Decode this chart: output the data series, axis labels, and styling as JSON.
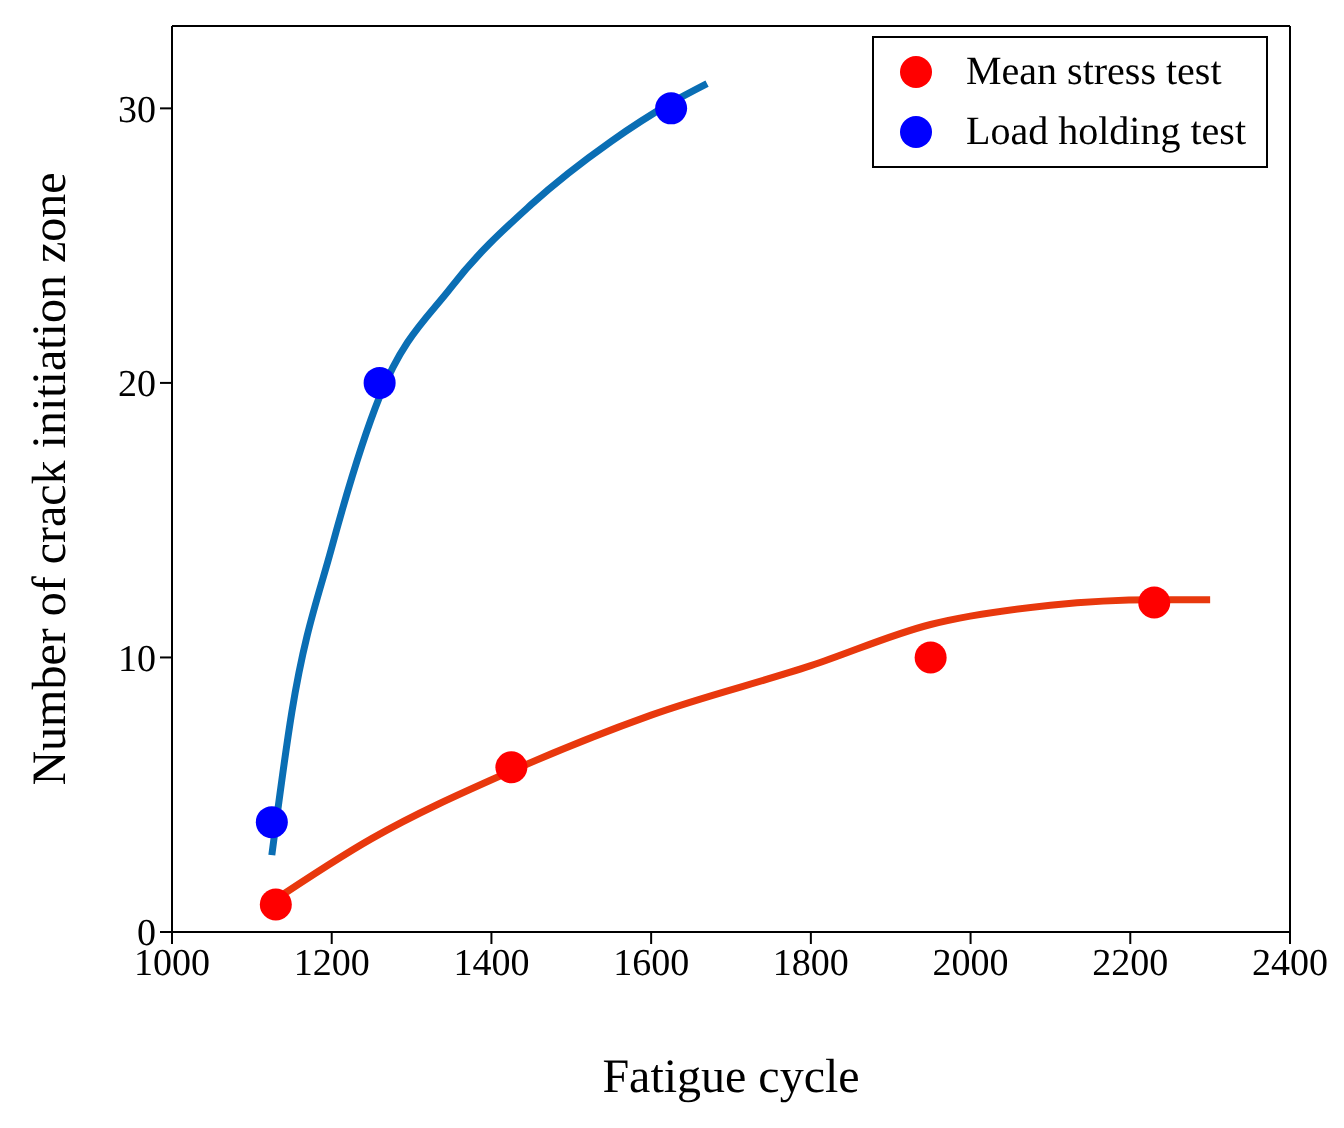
{
  "chart_data": {
    "type": "scatter",
    "xlabel": "Fatigue cycle",
    "ylabel": "Number of crack initiation zone",
    "xlim": [
      1000,
      2400
    ],
    "xticks": [
      1000,
      1200,
      1400,
      1600,
      1800,
      2000,
      2200,
      2400
    ],
    "ylim": [
      0,
      33
    ],
    "yticks": [
      0,
      10,
      20,
      30
    ],
    "grid": false,
    "legend": "top right",
    "marker": "circle",
    "series": [
      {
        "name": "Mean stress test",
        "color": "#ff0000",
        "x": [
          1130,
          1425,
          1950,
          2230
        ],
        "values": [
          1,
          6,
          10,
          12
        ]
      },
      {
        "name": "Load holding test",
        "color": "#0000ff",
        "x": [
          1125,
          1260,
          1625
        ],
        "values": [
          4,
          20,
          30
        ]
      },
      {
        "type": "line",
        "marker": "none",
        "color": "#e8380d",
        "x": [
          1120,
          1250,
          1420,
          1600,
          1800,
          1950,
          2100,
          2230,
          2300
        ],
        "values": [
          1,
          3.4,
          5.8,
          7.9,
          9.7,
          11.2,
          11.9,
          12.1,
          12.1
        ]
      },
      {
        "type": "line",
        "marker": "none",
        "color": "#0a6eb4",
        "x": [
          1125,
          1150,
          1200,
          1260,
          1350,
          1450,
          1550,
          1625,
          1670
        ],
        "values": [
          2.8,
          8,
          14,
          19.5,
          23.5,
          26.5,
          28.8,
          30.2,
          30.9
        ]
      }
    ]
  }
}
